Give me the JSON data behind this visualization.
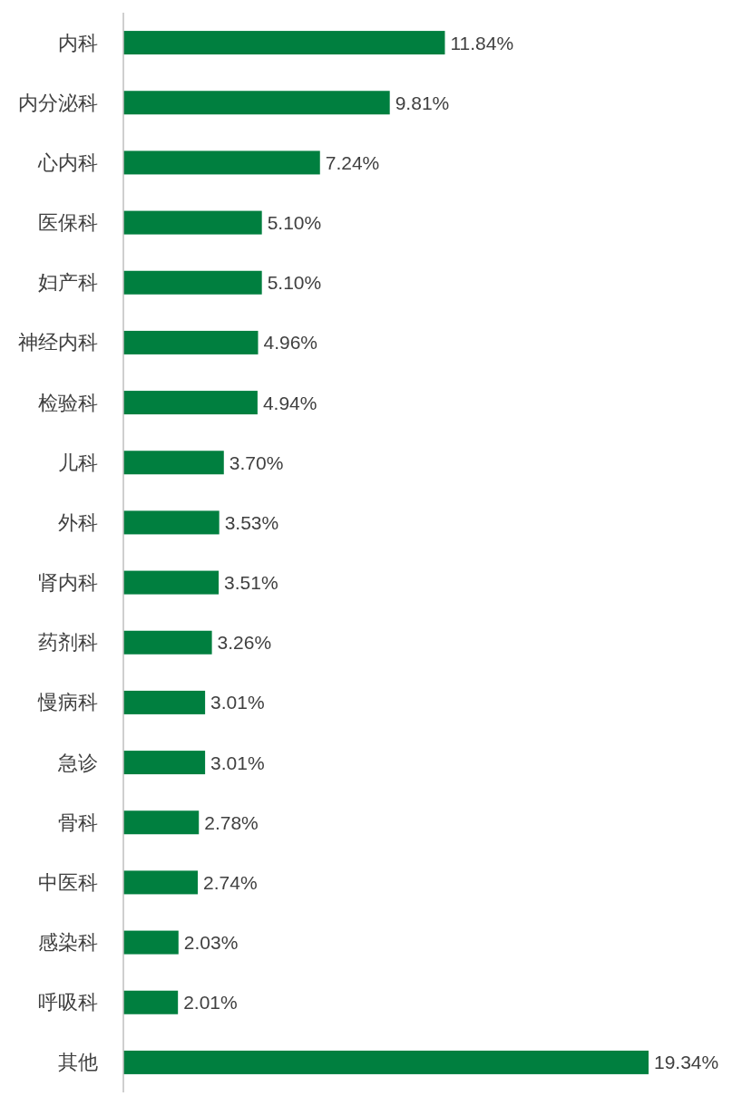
{
  "chart_data": {
    "type": "bar",
    "orientation": "horizontal",
    "color": "#007f3f",
    "categories": [
      "内科",
      "内分泌科",
      "心内科",
      "医保科",
      "妇产科",
      "神经内科",
      "检验科",
      "儿科",
      "外科",
      "肾内科",
      "药剂科",
      "慢病科",
      "急诊",
      "骨科",
      "中医科",
      "感染科",
      "呼吸科",
      "其他"
    ],
    "values": [
      11.84,
      9.81,
      7.24,
      5.1,
      5.1,
      4.96,
      4.94,
      3.7,
      3.53,
      3.51,
      3.26,
      3.01,
      3.01,
      2.78,
      2.74,
      2.03,
      2.01,
      19.34
    ],
    "value_labels": [
      "11.84%",
      "9.81%",
      "7.24%",
      "5.10%",
      "5.10%",
      "4.96%",
      "4.94%",
      "3.70%",
      "3.53%",
      "3.51%",
      "3.26%",
      "3.01%",
      "3.01%",
      "2.78%",
      "2.74%",
      "2.03%",
      "2.01%",
      "19.34%"
    ]
  }
}
